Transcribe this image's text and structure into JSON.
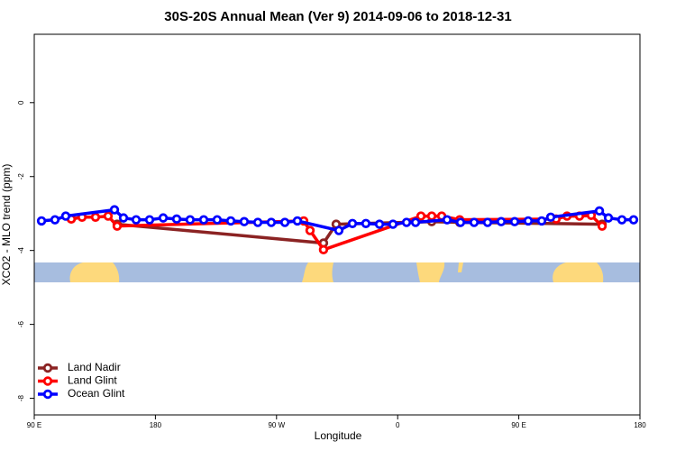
{
  "chart_data": {
    "type": "line",
    "title": "30S-20S Annual Mean (Ver 9)   2014-09-06 to 2018-12-31",
    "x_label": "Longitude",
    "y_label": "XCO2 - MLO trend (ppm)",
    "xlim": [
      90,
      540
    ],
    "xticks": [
      {
        "value": 90,
        "label": "90 E"
      },
      {
        "value": 180,
        "label": "180"
      },
      {
        "value": 270,
        "label": "90 W"
      },
      {
        "value": 360,
        "label": "0"
      },
      {
        "value": 450,
        "label": "90 E"
      },
      {
        "value": 540,
        "label": "180"
      }
    ],
    "ylim": [
      -8.45,
      1.85
    ],
    "yticks": [
      0,
      -2,
      -4,
      -6,
      -8
    ],
    "legend": "bottom-left",
    "series": [
      {
        "name": "Land Nadir",
        "color": "#8b2323",
        "x": [
          151.6,
          304.9,
          314.3,
          385.3,
          406.1,
          511.9
        ],
        "values": [
          -3.29,
          -3.8,
          -3.29,
          -3.22,
          -3.24,
          -3.29
        ]
      },
      {
        "name": "Land Glint",
        "color": "#ff0000",
        "x": [
          117.5,
          125.5,
          135.5,
          144.9,
          151.6,
          290.2,
          294.9,
          304.9,
          377.3,
          385.3,
          392.7,
          406.1,
          477.7,
          485.8,
          495.1,
          503.8,
          511.9
        ],
        "values": [
          -3.15,
          -3.1,
          -3.1,
          -3.07,
          -3.34,
          -3.2,
          -3.46,
          -3.98,
          -3.07,
          -3.07,
          -3.07,
          -3.17,
          -3.15,
          -3.07,
          -3.07,
          -3.05,
          -3.34
        ]
      },
      {
        "name": "Ocean Glint",
        "color": "#0000ff",
        "x": [
          95.4,
          105.4,
          113.4,
          149.6,
          156.3,
          165.7,
          175.7,
          185.8,
          195.8,
          205.8,
          215.9,
          225.9,
          236.0,
          246.0,
          256.1,
          266.1,
          276.2,
          285.5,
          316.3,
          326.4,
          336.4,
          346.5,
          356.5,
          366.6,
          373.3,
          396.7,
          406.7,
          416.8,
          426.8,
          436.9,
          446.9,
          457.0,
          467.0,
          473.7,
          509.9,
          516.6,
          526.6,
          535.3
        ],
        "values": [
          -3.2,
          -3.17,
          -3.07,
          -2.9,
          -3.12,
          -3.17,
          -3.17,
          -3.12,
          -3.15,
          -3.17,
          -3.17,
          -3.17,
          -3.2,
          -3.22,
          -3.24,
          -3.24,
          -3.24,
          -3.2,
          -3.46,
          -3.27,
          -3.27,
          -3.29,
          -3.29,
          -3.24,
          -3.24,
          -3.17,
          -3.24,
          -3.24,
          -3.24,
          -3.22,
          -3.22,
          -3.2,
          -3.2,
          -3.1,
          -2.93,
          -3.12,
          -3.17,
          -3.17
        ]
      }
    ]
  }
}
